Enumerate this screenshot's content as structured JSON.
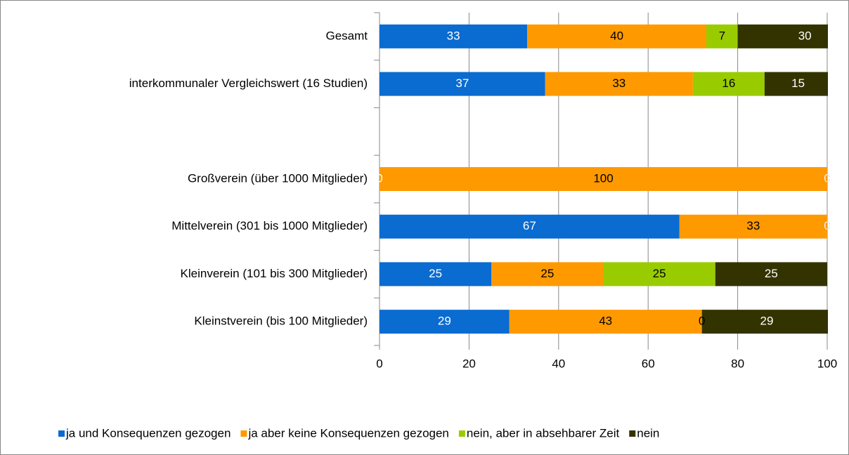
{
  "chart_data": {
    "type": "stacked-bar-horizontal",
    "categories": [
      "Gesamt",
      "interkommunaler Vergleichswert (16 Studien)",
      null,
      "Großverein (über 1000 Mitglieder)",
      "Mittelverein (301 bis 1000 Mitglieder)",
      "Kleinverein (101 bis 300 Mitglieder)",
      "Kleinstverein (bis 100 Mitglieder)"
    ],
    "series": [
      {
        "name": "ja und Konsequenzen gezogen",
        "color": "#0a6bd0",
        "label_color": "#ffffff",
        "values": [
          33,
          37,
          null,
          0,
          67,
          25,
          29
        ]
      },
      {
        "name": "ja aber keine Konsequenzen gezogen",
        "color": "#ff9900",
        "label_color": "#000000",
        "values": [
          40,
          33,
          null,
          100,
          33,
          25,
          43
        ]
      },
      {
        "name": "nein, aber in absehbarer Zeit",
        "color": "#99cc00",
        "label_color": "#000000",
        "values": [
          7,
          16,
          null,
          0,
          0,
          25,
          0
        ]
      },
      {
        "name": "nein",
        "color": "#333300",
        "label_color": "#ffffff",
        "values": [
          30,
          15,
          null,
          0,
          0,
          25,
          29
        ]
      }
    ],
    "xlim": [
      0,
      100
    ],
    "xticks": [
      0,
      20,
      40,
      60,
      80,
      100
    ],
    "grid": true,
    "legend": "bottom"
  }
}
